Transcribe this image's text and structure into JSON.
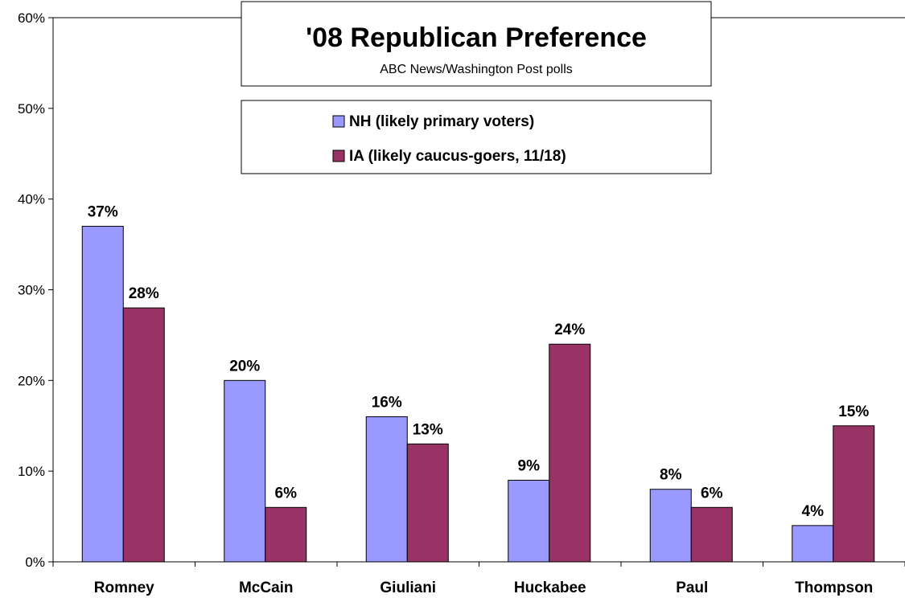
{
  "chart_data": {
    "type": "bar",
    "title": "'08 Republican Preference",
    "subtitle": "ABC News/Washington Post polls",
    "categories": [
      "Romney",
      "McCain",
      "Giuliani",
      "Huckabee",
      "Paul",
      "Thompson"
    ],
    "series": [
      {
        "name": "NH (likely primary voters)",
        "values": [
          37,
          20,
          16,
          9,
          8,
          4
        ],
        "labels": [
          "37%",
          "20%",
          "16%",
          "9%",
          "8%",
          "4%"
        ],
        "color": "#9999FF"
      },
      {
        "name": "IA (likely caucus-goers, 11/18)",
        "values": [
          28,
          6,
          13,
          24,
          6,
          15
        ],
        "labels": [
          "28%",
          "6%",
          "13%",
          "24%",
          "6%",
          "15%"
        ],
        "color": "#993366"
      }
    ],
    "ylim": [
      0,
      60
    ],
    "yticks": [
      0,
      10,
      20,
      30,
      40,
      50,
      60
    ],
    "ytick_labels": [
      "0%",
      "10%",
      "20%",
      "30%",
      "40%",
      "50%",
      "60%"
    ],
    "xlabel": "",
    "ylabel": "",
    "grid": false,
    "legend_position": "top-center"
  }
}
